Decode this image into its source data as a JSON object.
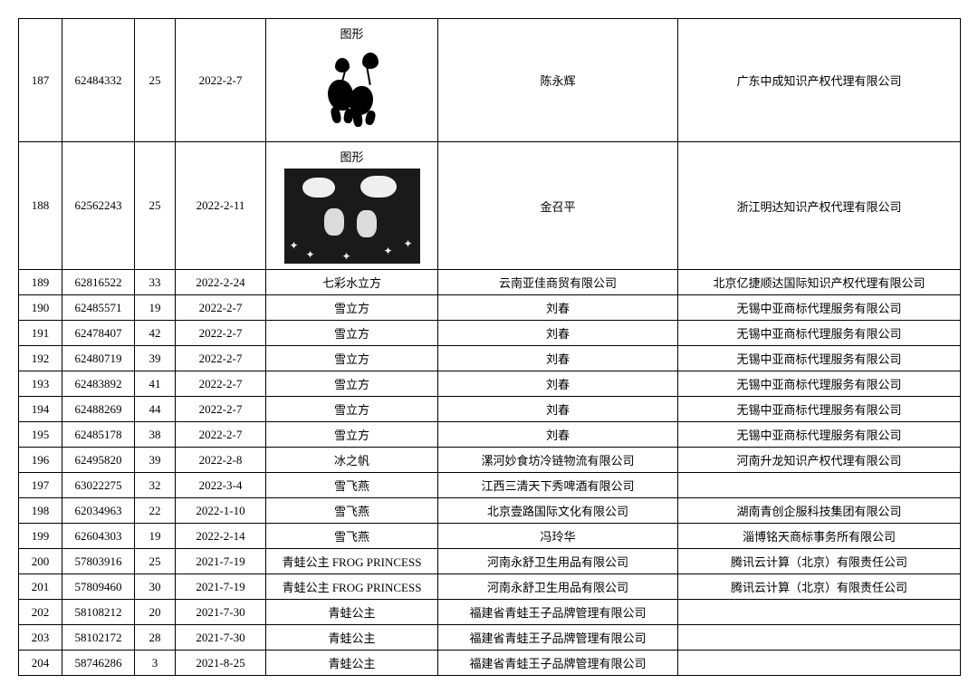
{
  "image_label": "图形",
  "rows": [
    {
      "idx": "187",
      "num": "62484332",
      "cls": "25",
      "date": "2022-2-7",
      "mark": null,
      "markType": "img1",
      "applicant": "陈永辉",
      "agent": "广东中成知识产权代理有限公司"
    },
    {
      "idx": "188",
      "num": "62562243",
      "cls": "25",
      "date": "2022-2-11",
      "mark": null,
      "markType": "img2",
      "applicant": "金召平",
      "agent": "浙江明达知识产权代理有限公司"
    },
    {
      "idx": "189",
      "num": "62816522",
      "cls": "33",
      "date": "2022-2-24",
      "mark": "七彩水立方",
      "applicant": "云南亚佳商贸有限公司",
      "agent": "北京亿捷顺达国际知识产权代理有限公司"
    },
    {
      "idx": "190",
      "num": "62485571",
      "cls": "19",
      "date": "2022-2-7",
      "mark": "雪立方",
      "applicant": "刘春",
      "agent": "无锡中亚商标代理服务有限公司"
    },
    {
      "idx": "191",
      "num": "62478407",
      "cls": "42",
      "date": "2022-2-7",
      "mark": "雪立方",
      "applicant": "刘春",
      "agent": "无锡中亚商标代理服务有限公司"
    },
    {
      "idx": "192",
      "num": "62480719",
      "cls": "39",
      "date": "2022-2-7",
      "mark": "雪立方",
      "applicant": "刘春",
      "agent": "无锡中亚商标代理服务有限公司"
    },
    {
      "idx": "193",
      "num": "62483892",
      "cls": "41",
      "date": "2022-2-7",
      "mark": "雪立方",
      "applicant": "刘春",
      "agent": "无锡中亚商标代理服务有限公司"
    },
    {
      "idx": "194",
      "num": "62488269",
      "cls": "44",
      "date": "2022-2-7",
      "mark": "雪立方",
      "applicant": "刘春",
      "agent": "无锡中亚商标代理服务有限公司"
    },
    {
      "idx": "195",
      "num": "62485178",
      "cls": "38",
      "date": "2022-2-7",
      "mark": "雪立方",
      "applicant": "刘春",
      "agent": "无锡中亚商标代理服务有限公司"
    },
    {
      "idx": "196",
      "num": "62495820",
      "cls": "39",
      "date": "2022-2-8",
      "mark": "冰之帆",
      "applicant": "漯河妙食坊冷链物流有限公司",
      "agent": "河南升龙知识产权代理有限公司"
    },
    {
      "idx": "197",
      "num": "63022275",
      "cls": "32",
      "date": "2022-3-4",
      "mark": "雪飞燕",
      "applicant": "江西三清天下秀啤酒有限公司",
      "agent": ""
    },
    {
      "idx": "198",
      "num": "62034963",
      "cls": "22",
      "date": "2022-1-10",
      "mark": "雪飞燕",
      "applicant": "北京壹路国际文化有限公司",
      "agent": "湖南青创企服科技集团有限公司"
    },
    {
      "idx": "199",
      "num": "62604303",
      "cls": "19",
      "date": "2022-2-14",
      "mark": "雪飞燕",
      "applicant": "冯玲华",
      "agent": "淄博铭天商标事务所有限公司"
    },
    {
      "idx": "200",
      "num": "57803916",
      "cls": "25",
      "date": "2021-7-19",
      "mark": "青蛙公主 FROG PRINCESS",
      "applicant": "河南永舒卫生用品有限公司",
      "agent": "腾讯云计算（北京）有限责任公司"
    },
    {
      "idx": "201",
      "num": "57809460",
      "cls": "30",
      "date": "2021-7-19",
      "mark": "青蛙公主 FROG PRINCESS",
      "applicant": "河南永舒卫生用品有限公司",
      "agent": "腾讯云计算（北京）有限责任公司"
    },
    {
      "idx": "202",
      "num": "58108212",
      "cls": "20",
      "date": "2021-7-30",
      "mark": "青蛙公主",
      "applicant": "福建省青蛙王子品牌管理有限公司",
      "agent": ""
    },
    {
      "idx": "203",
      "num": "58102172",
      "cls": "28",
      "date": "2021-7-30",
      "mark": "青蛙公主",
      "applicant": "福建省青蛙王子品牌管理有限公司",
      "agent": ""
    },
    {
      "idx": "204",
      "num": "58746286",
      "cls": "3",
      "date": "2021-8-25",
      "mark": "青蛙公主",
      "applicant": "福建省青蛙王子品牌管理有限公司",
      "agent": ""
    }
  ]
}
